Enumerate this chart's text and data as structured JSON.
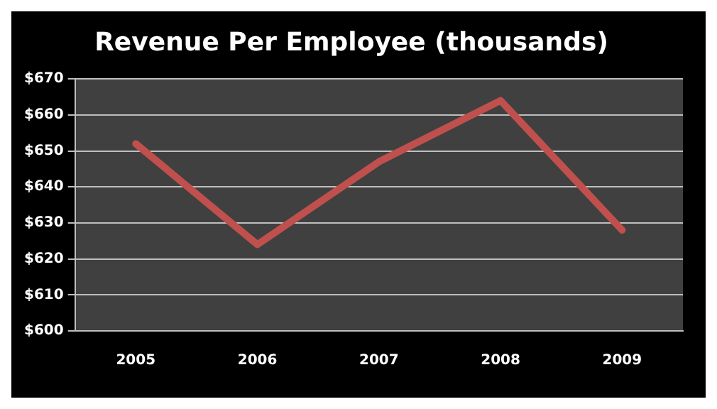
{
  "chart_data": {
    "type": "line",
    "title": "Revenue Per Employee (thousands)",
    "categories": [
      "2005",
      "2006",
      "2007",
      "2008",
      "2009"
    ],
    "series": [
      {
        "color": "#c0504d",
        "values": [
          652,
          624,
          647,
          664,
          628
        ]
      }
    ],
    "ylim": [
      600,
      670
    ],
    "yticks": [
      {
        "value": 600,
        "label": "$600"
      },
      {
        "value": 610,
        "label": "$610"
      },
      {
        "value": 620,
        "label": "$620"
      },
      {
        "value": 630,
        "label": "$630"
      },
      {
        "value": 640,
        "label": "$640"
      },
      {
        "value": 650,
        "label": "$650"
      },
      {
        "value": 660,
        "label": "$660"
      },
      {
        "value": 670,
        "label": "$670"
      }
    ],
    "grid": "y",
    "legend": false,
    "marker": "none",
    "line_style": "solid"
  }
}
